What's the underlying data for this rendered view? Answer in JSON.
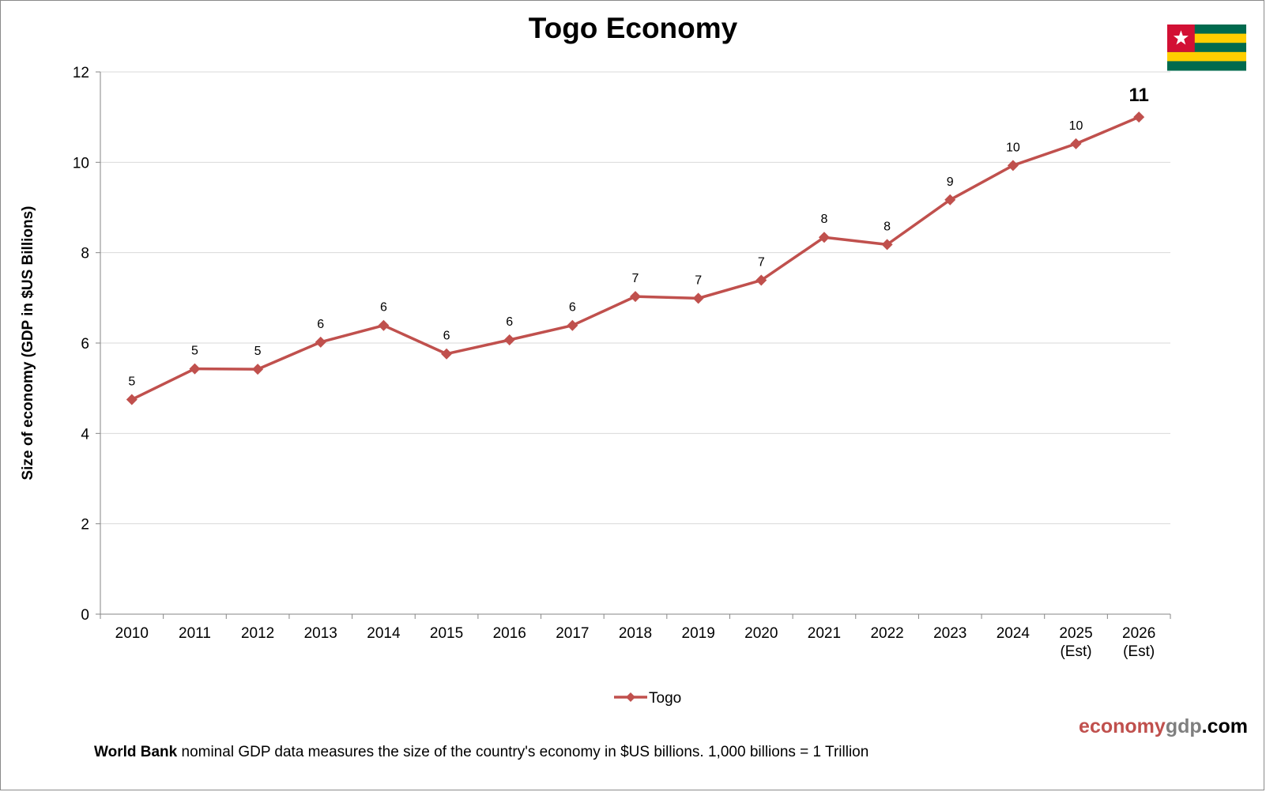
{
  "title": "Togo Economy",
  "footnote": {
    "source_bold": "World Bank",
    "text": "nominal GDP data  measures the size of the country's economy in $US billions.  1,000 billions = 1 Trillion"
  },
  "brand": {
    "part1": "economy",
    "part2": "gdp",
    "part3": ".com"
  },
  "flag": {
    "name": "togo-flag-icon",
    "colors": {
      "green": "#006a4e",
      "yellow": "#ffce00",
      "red": "#d21034",
      "star": "#ffffff"
    }
  },
  "colors": {
    "series": "#c0504d",
    "grid": "#d9d9d9",
    "axis": "#868686"
  },
  "chart_data": {
    "type": "line",
    "title": "Togo Economy",
    "xlabel": "",
    "ylabel": "Size of economy (GDP in $US Billions)",
    "ylim": [
      0,
      12
    ],
    "yticks": [
      0,
      2,
      4,
      6,
      8,
      10,
      12
    ],
    "grid": true,
    "legend_position": "bottom",
    "categories": [
      "2010",
      "2011",
      "2012",
      "2013",
      "2014",
      "2015",
      "2016",
      "2017",
      "2018",
      "2019",
      "2020",
      "2021",
      "2022",
      "2023",
      "2024",
      "2025 (Est)",
      "2026 (Est)"
    ],
    "series": [
      {
        "name": "Togo",
        "values": [
          4.75,
          5.43,
          5.42,
          6.02,
          6.39,
          5.76,
          6.07,
          6.39,
          7.03,
          6.99,
          7.39,
          8.34,
          8.18,
          9.17,
          9.93,
          10.41,
          11.0
        ],
        "data_labels": [
          "5",
          "5",
          "5",
          "6",
          "6",
          "6",
          "6",
          "6",
          "7",
          "7",
          "7",
          "8",
          "8",
          "9",
          "10",
          "10",
          "11"
        ]
      }
    ]
  }
}
